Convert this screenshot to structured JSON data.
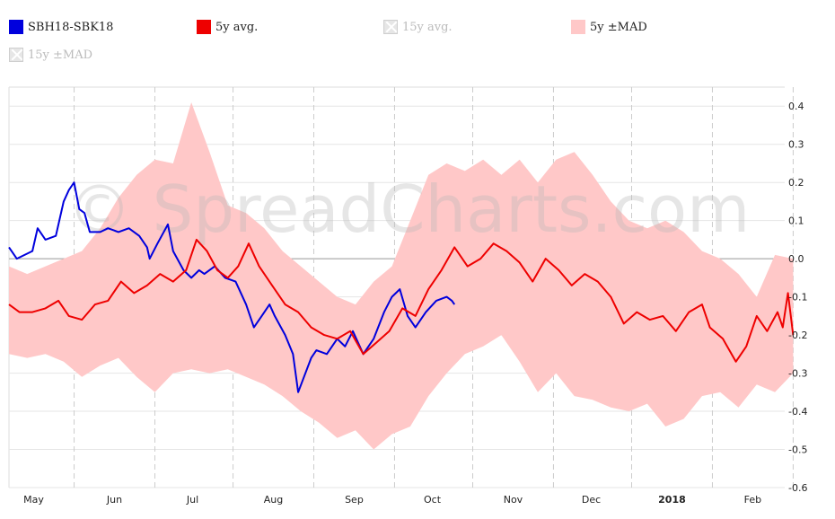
{
  "legend": [
    {
      "label": "SBH18-SBK18",
      "color": "#0000dd",
      "enabled": true
    },
    {
      "label": "5y avg.",
      "color": "#ee0000",
      "enabled": true
    },
    {
      "label": "15y avg.",
      "color": "#cccccc",
      "enabled": false
    },
    {
      "label": "5y ±MAD",
      "color": "#ffc8c8",
      "enabled": true
    },
    {
      "label": "15y ±MAD",
      "color": "#cccccc",
      "enabled": false
    }
  ],
  "watermark": "© SpreadCharts.com",
  "chart_data": {
    "type": "line",
    "title": "",
    "xlabel": "",
    "ylabel": "",
    "x_range": [
      "2017-04-21",
      "2018-02-10"
    ],
    "ylim": [
      -0.6,
      0.45
    ],
    "y_ticks": [
      0.4,
      0.3,
      0.2,
      0.1,
      0.0,
      -0.1,
      -0.2,
      -0.3,
      -0.4,
      -0.5,
      -0.6
    ],
    "y_tick_labels": [
      "0.4",
      "0.3",
      "0.2",
      "0.1",
      "0.0",
      "-0.1",
      "-0.2",
      "-0.3",
      "-0.4",
      "-0.5",
      "-0.6"
    ],
    "x_ticks": [
      {
        "label": "May",
        "date": "2017-05-16",
        "year": false
      },
      {
        "label": "Jun",
        "date": "2017-06-16",
        "year": false
      },
      {
        "label": "Jul",
        "date": "2017-07-16",
        "year": false
      },
      {
        "label": "Aug",
        "date": "2017-08-16",
        "year": false
      },
      {
        "label": "Sep",
        "date": "2017-09-16",
        "year": false
      },
      {
        "label": "Oct",
        "date": "2017-10-16",
        "year": false
      },
      {
        "label": "Nov",
        "date": "2017-11-16",
        "year": false
      },
      {
        "label": "Dec",
        "date": "2017-12-16",
        "year": false
      },
      {
        "label": "2018",
        "date": "2018-01-16",
        "year": true
      },
      {
        "label": "Feb",
        "date": "2018-02-16",
        "year": false
      }
    ],
    "grid": true,
    "legend_position": "top",
    "series": [
      {
        "name": "SBH18-SBK18",
        "color": "#0000dd",
        "points": [
          [
            "2017-04-21",
            0.03
          ],
          [
            "2017-04-24",
            0.0
          ],
          [
            "2017-04-27",
            0.01
          ],
          [
            "2017-04-30",
            0.02
          ],
          [
            "2017-05-02",
            0.08
          ],
          [
            "2017-05-05",
            0.05
          ],
          [
            "2017-05-09",
            0.06
          ],
          [
            "2017-05-12",
            0.15
          ],
          [
            "2017-05-14",
            0.18
          ],
          [
            "2017-05-16",
            0.2
          ],
          [
            "2017-05-18",
            0.13
          ],
          [
            "2017-05-20",
            0.12
          ],
          [
            "2017-05-22",
            0.07
          ],
          [
            "2017-05-26",
            0.07
          ],
          [
            "2017-05-29",
            0.08
          ],
          [
            "2017-06-02",
            0.07
          ],
          [
            "2017-06-06",
            0.08
          ],
          [
            "2017-06-10",
            0.06
          ],
          [
            "2017-06-13",
            0.03
          ],
          [
            "2017-06-14",
            0.0
          ],
          [
            "2017-06-17",
            0.04
          ],
          [
            "2017-06-21",
            0.09
          ],
          [
            "2017-06-23",
            0.02
          ],
          [
            "2017-06-27",
            -0.03
          ],
          [
            "2017-06-30",
            -0.05
          ],
          [
            "2017-07-03",
            -0.03
          ],
          [
            "2017-07-05",
            -0.04
          ],
          [
            "2017-07-09",
            -0.02
          ],
          [
            "2017-07-13",
            -0.05
          ],
          [
            "2017-07-17",
            -0.06
          ],
          [
            "2017-07-21",
            -0.12
          ],
          [
            "2017-07-24",
            -0.18
          ],
          [
            "2017-07-27",
            -0.15
          ],
          [
            "2017-07-30",
            -0.12
          ],
          [
            "2017-08-01",
            -0.15
          ],
          [
            "2017-08-05",
            -0.2
          ],
          [
            "2017-08-08",
            -0.25
          ],
          [
            "2017-08-10",
            -0.35
          ],
          [
            "2017-08-15",
            -0.26
          ],
          [
            "2017-08-17",
            -0.24
          ],
          [
            "2017-08-21",
            -0.25
          ],
          [
            "2017-08-25",
            -0.21
          ],
          [
            "2017-08-28",
            -0.23
          ],
          [
            "2017-08-31",
            -0.19
          ],
          [
            "2017-09-04",
            -0.25
          ],
          [
            "2017-09-08",
            -0.21
          ],
          [
            "2017-09-12",
            -0.14
          ],
          [
            "2017-09-15",
            -0.1
          ],
          [
            "2017-09-18",
            -0.08
          ],
          [
            "2017-09-21",
            -0.15
          ],
          [
            "2017-09-24",
            -0.18
          ],
          [
            "2017-09-28",
            -0.14
          ],
          [
            "2017-10-02",
            -0.11
          ],
          [
            "2017-10-06",
            -0.1
          ],
          [
            "2017-10-08",
            -0.11
          ],
          [
            "2017-10-09",
            -0.12
          ]
        ]
      },
      {
        "name": "5y avg.",
        "color": "#ee0000",
        "points": [
          [
            "2017-04-21",
            -0.12
          ],
          [
            "2017-04-25",
            -0.14
          ],
          [
            "2017-04-30",
            -0.14
          ],
          [
            "2017-05-05",
            -0.13
          ],
          [
            "2017-05-10",
            -0.11
          ],
          [
            "2017-05-14",
            -0.15
          ],
          [
            "2017-05-19",
            -0.16
          ],
          [
            "2017-05-24",
            -0.12
          ],
          [
            "2017-05-29",
            -0.11
          ],
          [
            "2017-06-03",
            -0.06
          ],
          [
            "2017-06-08",
            -0.09
          ],
          [
            "2017-06-13",
            -0.07
          ],
          [
            "2017-06-18",
            -0.04
          ],
          [
            "2017-06-23",
            -0.06
          ],
          [
            "2017-06-28",
            -0.03
          ],
          [
            "2017-07-02",
            0.05
          ],
          [
            "2017-07-06",
            0.02
          ],
          [
            "2017-07-10",
            -0.03
          ],
          [
            "2017-07-14",
            -0.05
          ],
          [
            "2017-07-18",
            -0.02
          ],
          [
            "2017-07-22",
            0.04
          ],
          [
            "2017-07-26",
            -0.02
          ],
          [
            "2017-07-31",
            -0.07
          ],
          [
            "2017-08-05",
            -0.12
          ],
          [
            "2017-08-10",
            -0.14
          ],
          [
            "2017-08-15",
            -0.18
          ],
          [
            "2017-08-20",
            -0.2
          ],
          [
            "2017-08-25",
            -0.21
          ],
          [
            "2017-08-30",
            -0.19
          ],
          [
            "2017-09-04",
            -0.25
          ],
          [
            "2017-09-09",
            -0.22
          ],
          [
            "2017-09-14",
            -0.19
          ],
          [
            "2017-09-19",
            -0.13
          ],
          [
            "2017-09-24",
            -0.15
          ],
          [
            "2017-09-29",
            -0.08
          ],
          [
            "2017-10-04",
            -0.03
          ],
          [
            "2017-10-09",
            0.03
          ],
          [
            "2017-10-14",
            -0.02
          ],
          [
            "2017-10-19",
            0.0
          ],
          [
            "2017-10-24",
            0.04
          ],
          [
            "2017-10-29",
            0.02
          ],
          [
            "2017-11-03",
            -0.01
          ],
          [
            "2017-11-08",
            -0.06
          ],
          [
            "2017-11-13",
            0.0
          ],
          [
            "2017-11-18",
            -0.03
          ],
          [
            "2017-11-23",
            -0.07
          ],
          [
            "2017-11-28",
            -0.04
          ],
          [
            "2017-12-03",
            -0.06
          ],
          [
            "2017-12-08",
            -0.1
          ],
          [
            "2017-12-13",
            -0.17
          ],
          [
            "2017-12-18",
            -0.14
          ],
          [
            "2017-12-23",
            -0.16
          ],
          [
            "2017-12-28",
            -0.15
          ],
          [
            "2018-01-02",
            -0.19
          ],
          [
            "2018-01-07",
            -0.14
          ],
          [
            "2018-01-12",
            -0.12
          ],
          [
            "2018-01-15",
            -0.18
          ],
          [
            "2018-01-20",
            -0.21
          ],
          [
            "2018-01-25",
            -0.27
          ],
          [
            "2018-01-29",
            -0.23
          ],
          [
            "2018-02-02",
            -0.15
          ],
          [
            "2018-02-06",
            -0.19
          ],
          [
            "2018-02-10",
            -0.14
          ],
          [
            "2018-02-12",
            -0.18
          ],
          [
            "2018-02-14",
            -0.09
          ],
          [
            "2018-02-16",
            -0.2
          ]
        ]
      }
    ],
    "band": {
      "name": "5y ±MAD",
      "color": "#ffc8c8",
      "upper": [
        [
          "2017-04-21",
          -0.02
        ],
        [
          "2017-04-28",
          -0.04
        ],
        [
          "2017-05-05",
          -0.02
        ],
        [
          "2017-05-12",
          0.0
        ],
        [
          "2017-05-19",
          0.02
        ],
        [
          "2017-05-26",
          0.08
        ],
        [
          "2017-06-02",
          0.16
        ],
        [
          "2017-06-09",
          0.22
        ],
        [
          "2017-06-16",
          0.26
        ],
        [
          "2017-06-23",
          0.25
        ],
        [
          "2017-06-30",
          0.41
        ],
        [
          "2017-07-07",
          0.28
        ],
        [
          "2017-07-14",
          0.14
        ],
        [
          "2017-07-21",
          0.12
        ],
        [
          "2017-07-28",
          0.08
        ],
        [
          "2017-08-04",
          0.02
        ],
        [
          "2017-08-11",
          -0.02
        ],
        [
          "2017-08-18",
          -0.06
        ],
        [
          "2017-08-25",
          -0.1
        ],
        [
          "2017-09-01",
          -0.12
        ],
        [
          "2017-09-08",
          -0.06
        ],
        [
          "2017-09-15",
          -0.02
        ],
        [
          "2017-09-22",
          0.1
        ],
        [
          "2017-09-29",
          0.22
        ],
        [
          "2017-10-06",
          0.25
        ],
        [
          "2017-10-13",
          0.23
        ],
        [
          "2017-10-20",
          0.26
        ],
        [
          "2017-10-27",
          0.22
        ],
        [
          "2017-11-03",
          0.26
        ],
        [
          "2017-11-10",
          0.2
        ],
        [
          "2017-11-17",
          0.26
        ],
        [
          "2017-11-24",
          0.28
        ],
        [
          "2017-12-01",
          0.22
        ],
        [
          "2017-12-08",
          0.15
        ],
        [
          "2017-12-15",
          0.1
        ],
        [
          "2017-12-22",
          0.08
        ],
        [
          "2017-12-29",
          0.1
        ],
        [
          "2018-01-05",
          0.07
        ],
        [
          "2018-01-12",
          0.02
        ],
        [
          "2018-01-19",
          0.0
        ],
        [
          "2018-01-26",
          -0.04
        ],
        [
          "2018-02-02",
          -0.1
        ],
        [
          "2018-02-09",
          0.01
        ],
        [
          "2018-02-16",
          0.0
        ]
      ],
      "lower": [
        [
          "2017-04-21",
          -0.25
        ],
        [
          "2017-04-28",
          -0.26
        ],
        [
          "2017-05-05",
          -0.25
        ],
        [
          "2017-05-12",
          -0.27
        ],
        [
          "2017-05-19",
          -0.31
        ],
        [
          "2017-05-26",
          -0.28
        ],
        [
          "2017-06-02",
          -0.26
        ],
        [
          "2017-06-09",
          -0.31
        ],
        [
          "2017-06-16",
          -0.35
        ],
        [
          "2017-06-23",
          -0.3
        ],
        [
          "2017-06-30",
          -0.29
        ],
        [
          "2017-07-07",
          -0.3
        ],
        [
          "2017-07-14",
          -0.29
        ],
        [
          "2017-07-21",
          -0.31
        ],
        [
          "2017-07-28",
          -0.33
        ],
        [
          "2017-08-04",
          -0.36
        ],
        [
          "2017-08-11",
          -0.4
        ],
        [
          "2017-08-18",
          -0.43
        ],
        [
          "2017-08-25",
          -0.47
        ],
        [
          "2017-09-01",
          -0.45
        ],
        [
          "2017-09-08",
          -0.5
        ],
        [
          "2017-09-15",
          -0.46
        ],
        [
          "2017-09-22",
          -0.44
        ],
        [
          "2017-09-29",
          -0.36
        ],
        [
          "2017-10-06",
          -0.3
        ],
        [
          "2017-10-13",
          -0.25
        ],
        [
          "2017-10-20",
          -0.23
        ],
        [
          "2017-10-27",
          -0.2
        ],
        [
          "2017-11-03",
          -0.27
        ],
        [
          "2017-11-10",
          -0.35
        ],
        [
          "2017-11-17",
          -0.3
        ],
        [
          "2017-11-24",
          -0.36
        ],
        [
          "2017-12-01",
          -0.37
        ],
        [
          "2017-12-08",
          -0.39
        ],
        [
          "2017-12-15",
          -0.4
        ],
        [
          "2017-12-22",
          -0.38
        ],
        [
          "2017-12-29",
          -0.44
        ],
        [
          "2018-01-05",
          -0.42
        ],
        [
          "2018-01-12",
          -0.36
        ],
        [
          "2018-01-19",
          -0.35
        ],
        [
          "2018-01-26",
          -0.39
        ],
        [
          "2018-02-02",
          -0.33
        ],
        [
          "2018-02-09",
          -0.35
        ],
        [
          "2018-02-16",
          -0.3
        ]
      ]
    }
  }
}
